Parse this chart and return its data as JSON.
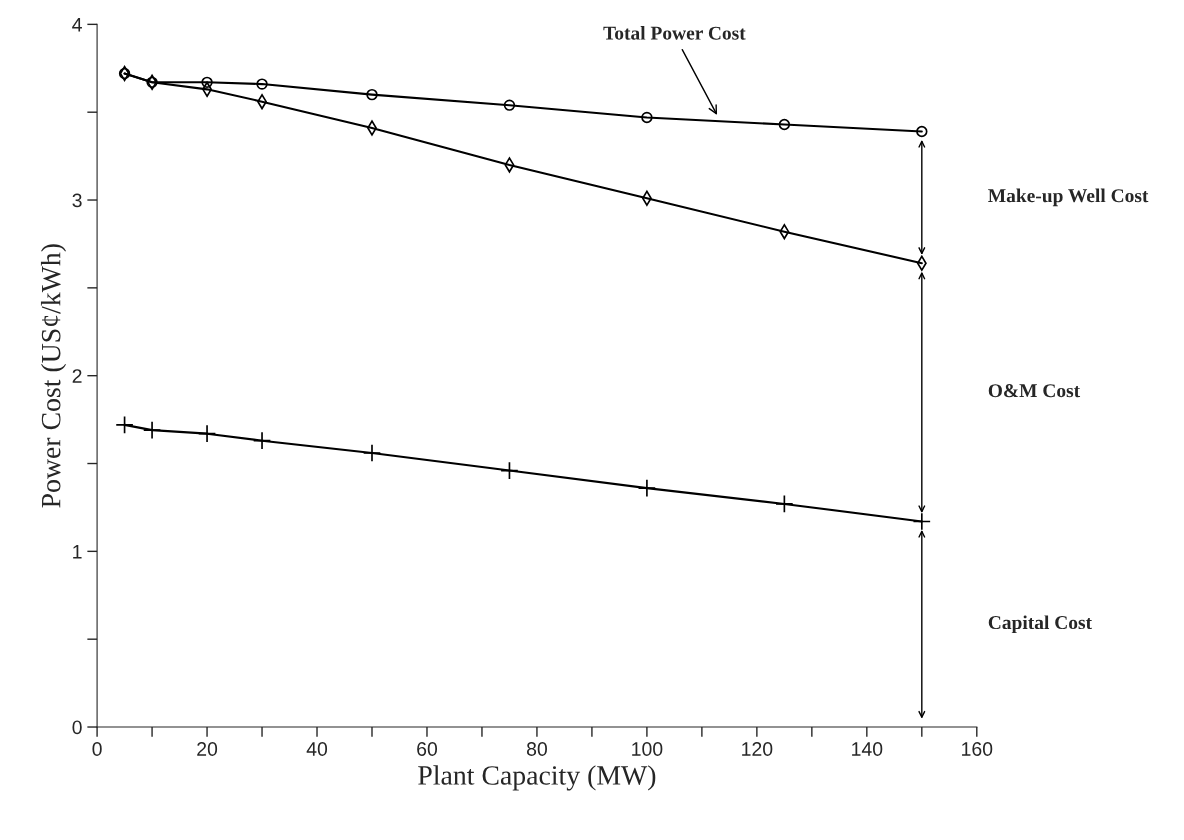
{
  "chart_data": {
    "type": "line",
    "xlabel": "Plant Capacity (MW)",
    "ylabel": "Power Cost (US¢/kWh)",
    "x": [
      5,
      10,
      20,
      30,
      50,
      75,
      100,
      125,
      150
    ],
    "series": [
      {
        "color": "#000000",
        "marker": "circle",
        "values": [
          3.72,
          3.67,
          3.67,
          3.66,
          3.6,
          3.54,
          3.47,
          3.43,
          3.39
        ]
      },
      {
        "color": "#000000",
        "marker": "diamond",
        "values": [
          3.72,
          3.67,
          3.63,
          3.56,
          3.41,
          3.2,
          3.01,
          2.82,
          2.64
        ]
      },
      {
        "color": "#000000",
        "marker": "cross",
        "values": [
          1.72,
          1.69,
          1.67,
          1.63,
          1.56,
          1.46,
          1.36,
          1.27,
          1.17
        ]
      }
    ],
    "annotations": [
      {
        "text": "Total Power Cost",
        "x": 113,
        "y": 3.47
      },
      "Make-up Well Cost",
      "O&M Cost",
      "Capital Cost"
    ],
    "xlim": [
      0,
      160
    ],
    "ylim": [
      0,
      4
    ],
    "xticks": [
      0,
      {
        "value": 10,
        "label": null
      },
      20,
      {
        "value": 30,
        "label": null
      },
      40,
      {
        "value": 50,
        "label": null
      },
      60,
      {
        "value": 70,
        "label": null
      },
      80,
      {
        "value": 90,
        "label": null
      },
      100,
      {
        "value": 110,
        "label": null
      },
      120,
      {
        "value": 130,
        "label": null
      },
      140,
      {
        "value": 150,
        "label": null
      },
      160
    ],
    "yticks": [
      0,
      {
        "value": 0.5,
        "label": null
      },
      1,
      {
        "value": 1.5,
        "label": null
      },
      2,
      {
        "value": 2.5,
        "label": null
      },
      3,
      {
        "value": 3.5,
        "label": null
      },
      4
    ],
    "grid": false,
    "legend": false
  }
}
